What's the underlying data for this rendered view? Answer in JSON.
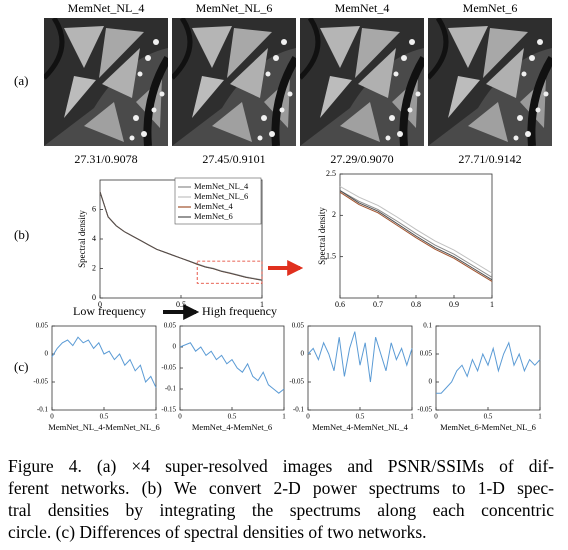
{
  "panel_a": {
    "label": "(a)",
    "items": [
      {
        "name": "MemNet_NL_4",
        "score": "27.31/0.9078",
        "color": "#000000"
      },
      {
        "name": "MemNet_NL_6",
        "score": "27.45/0.9101",
        "color": "#000000"
      },
      {
        "name": "MemNet_4",
        "score": "27.29/0.9070",
        "color": "#000000"
      },
      {
        "name": "MemNet_6",
        "score": "27.71/0.9142",
        "color": "#e0301e"
      }
    ]
  },
  "panel_b": {
    "label": "(b)",
    "low": "Low frequency",
    "high": "High frequency"
  },
  "panel_c": {
    "label": "(c)"
  },
  "chart_data": [
    {
      "type": "line",
      "y_label": "Spectral density",
      "xlim": [
        0,
        1
      ],
      "ylim": [
        0,
        8
      ],
      "xticks": [
        0,
        0.5,
        1
      ],
      "yticks": [
        0,
        2,
        4,
        6
      ],
      "x": [
        0,
        0.05,
        0.1,
        0.15,
        0.2,
        0.25,
        0.3,
        0.35,
        0.4,
        0.45,
        0.5,
        0.55,
        0.6,
        0.65,
        0.7,
        0.75,
        0.8,
        0.85,
        0.9,
        0.95,
        1
      ],
      "series": [
        {
          "name": "MemNet_NL_4",
          "color": "#8c8c8c",
          "values": [
            7.2,
            5.5,
            4.9,
            4.5,
            4.2,
            3.9,
            3.6,
            3.3,
            3.1,
            2.9,
            2.7,
            2.5,
            2.3,
            2.12,
            2.0,
            1.82,
            1.7,
            1.56,
            1.42,
            1.32,
            1.22
          ]
        },
        {
          "name": "MemNet_NL_6",
          "color": "#c0c0c0",
          "values": [
            7.2,
            5.5,
            4.9,
            4.5,
            4.2,
            3.9,
            3.6,
            3.3,
            3.1,
            2.9,
            2.7,
            2.5,
            2.32,
            2.14,
            2.02,
            1.84,
            1.72,
            1.58,
            1.44,
            1.34,
            1.24
          ]
        },
        {
          "name": "MemNet_4",
          "color": "#a0522d",
          "values": [
            7.2,
            5.5,
            4.9,
            4.5,
            4.2,
            3.9,
            3.6,
            3.3,
            3.1,
            2.9,
            2.7,
            2.5,
            2.28,
            2.1,
            1.98,
            1.8,
            1.68,
            1.54,
            1.4,
            1.3,
            1.2
          ]
        },
        {
          "name": "MemNet_6",
          "color": "#505050",
          "values": [
            7.2,
            5.5,
            4.9,
            4.5,
            4.2,
            3.9,
            3.6,
            3.3,
            3.1,
            2.9,
            2.7,
            2.5,
            2.3,
            2.1,
            1.99,
            1.81,
            1.69,
            1.55,
            1.41,
            1.31,
            1.21
          ]
        }
      ]
    },
    {
      "type": "line",
      "y_label": "Spectral density",
      "xlim": [
        0.6,
        1
      ],
      "ylim": [
        1,
        2.5
      ],
      "xticks": [
        0.6,
        0.7,
        0.8,
        0.9,
        1
      ],
      "yticks": [
        1.5,
        2,
        2.5
      ],
      "x": [
        0.6,
        0.65,
        0.7,
        0.75,
        0.8,
        0.85,
        0.9,
        0.95,
        1
      ],
      "series": [
        {
          "name": "MemNet_NL_4",
          "color": "#8c8c8c",
          "values": [
            2.3,
            2.17,
            2.07,
            1.93,
            1.78,
            1.64,
            1.53,
            1.39,
            1.25
          ]
        },
        {
          "name": "MemNet_NL_6",
          "color": "#c0c0c0",
          "values": [
            2.35,
            2.22,
            2.12,
            1.98,
            1.83,
            1.69,
            1.58,
            1.44,
            1.3
          ]
        },
        {
          "name": "MemNet_4",
          "color": "#a0522d",
          "values": [
            2.28,
            2.13,
            2.03,
            1.88,
            1.73,
            1.59,
            1.48,
            1.34,
            1.2
          ]
        },
        {
          "name": "MemNet_6",
          "color": "#505050",
          "values": [
            2.3,
            2.15,
            2.05,
            1.9,
            1.75,
            1.61,
            1.5,
            1.36,
            1.22
          ]
        }
      ]
    },
    {
      "type": "line",
      "x_label": "MemNet_NL_4-MemNet_NL_6",
      "xlim": [
        0,
        1
      ],
      "ylim": [
        -0.1,
        0.05
      ],
      "xticks": [
        0,
        0.5,
        1
      ],
      "yticks": [
        -0.1,
        -0.05,
        0,
        0.05
      ],
      "x": [
        0,
        0.05,
        0.1,
        0.15,
        0.2,
        0.25,
        0.3,
        0.35,
        0.4,
        0.45,
        0.5,
        0.55,
        0.6,
        0.65,
        0.7,
        0.75,
        0.8,
        0.85,
        0.9,
        0.95,
        1
      ],
      "series": [
        {
          "color": "#5b9bd5",
          "values": [
            -0.005,
            0.01,
            0.02,
            0.025,
            0.015,
            0.03,
            0.02,
            0.025,
            0.01,
            0.02,
            0.0,
            0.005,
            -0.01,
            0.0,
            -0.02,
            -0.01,
            -0.03,
            -0.02,
            -0.05,
            -0.04,
            -0.06
          ]
        }
      ]
    },
    {
      "type": "line",
      "x_label": "MemNet_4-MemNet_6",
      "xlim": [
        0,
        1
      ],
      "ylim": [
        -0.15,
        0.05
      ],
      "xticks": [
        0,
        0.5,
        1
      ],
      "yticks": [
        -0.15,
        -0.1,
        -0.05,
        0,
        0.05
      ],
      "x": [
        0,
        0.05,
        0.1,
        0.15,
        0.2,
        0.25,
        0.3,
        0.35,
        0.4,
        0.45,
        0.5,
        0.55,
        0.6,
        0.65,
        0.7,
        0.75,
        0.8,
        0.85,
        0.9,
        0.95,
        1
      ],
      "series": [
        {
          "color": "#5b9bd5",
          "values": [
            0.0,
            0.005,
            0.01,
            -0.01,
            0.0,
            -0.02,
            -0.01,
            -0.03,
            -0.02,
            -0.04,
            -0.03,
            -0.05,
            -0.06,
            -0.04,
            -0.07,
            -0.08,
            -0.06,
            -0.09,
            -0.1,
            -0.11,
            -0.1
          ]
        }
      ]
    },
    {
      "type": "line",
      "x_label": "MemNet_4-MemNet_NL_4",
      "xlim": [
        0,
        1
      ],
      "ylim": [
        -0.1,
        0.05
      ],
      "xticks": [
        0,
        0.5,
        1
      ],
      "yticks": [
        -0.1,
        -0.05,
        0,
        0.05
      ],
      "x": [
        0,
        0.05,
        0.1,
        0.15,
        0.2,
        0.25,
        0.3,
        0.35,
        0.4,
        0.45,
        0.5,
        0.55,
        0.6,
        0.65,
        0.7,
        0.75,
        0.8,
        0.85,
        0.9,
        0.95,
        1
      ],
      "series": [
        {
          "color": "#5b9bd5",
          "values": [
            0.0,
            0.01,
            -0.01,
            0.02,
            0.0,
            -0.03,
            0.03,
            -0.04,
            0.01,
            0.04,
            -0.02,
            0.02,
            -0.05,
            0.03,
            0.0,
            -0.03,
            0.02,
            -0.01,
            0.01,
            -0.02,
            0.01
          ]
        }
      ]
    },
    {
      "type": "line",
      "x_label": "MemNet_6-MemNet_NL_6",
      "xlim": [
        0,
        1
      ],
      "ylim": [
        -0.05,
        0.1
      ],
      "xticks": [
        0,
        0.5,
        1
      ],
      "yticks": [
        -0.05,
        0,
        0.05,
        0.1
      ],
      "x": [
        0,
        0.05,
        0.1,
        0.15,
        0.2,
        0.25,
        0.3,
        0.35,
        0.4,
        0.45,
        0.5,
        0.55,
        0.6,
        0.65,
        0.7,
        0.75,
        0.8,
        0.85,
        0.9,
        0.95,
        1
      ],
      "series": [
        {
          "color": "#5b9bd5",
          "values": [
            -0.02,
            -0.02,
            -0.01,
            0.0,
            0.02,
            0.03,
            0.01,
            0.04,
            0.02,
            0.05,
            0.03,
            0.06,
            0.02,
            0.05,
            0.07,
            0.03,
            0.05,
            0.02,
            0.04,
            0.03,
            0.04
          ]
        }
      ]
    }
  ],
  "caption": [
    "Figure 4. (a) ×4 super-resolved images and PSNR/SSIMs of dif-",
    "ferent networks. (b) We convert 2-D power spectrums to 1-D spec-",
    "tral densities by integrating the spectrums along each concentric",
    "circle. (c) Differences of spectral densities of two networks."
  ]
}
